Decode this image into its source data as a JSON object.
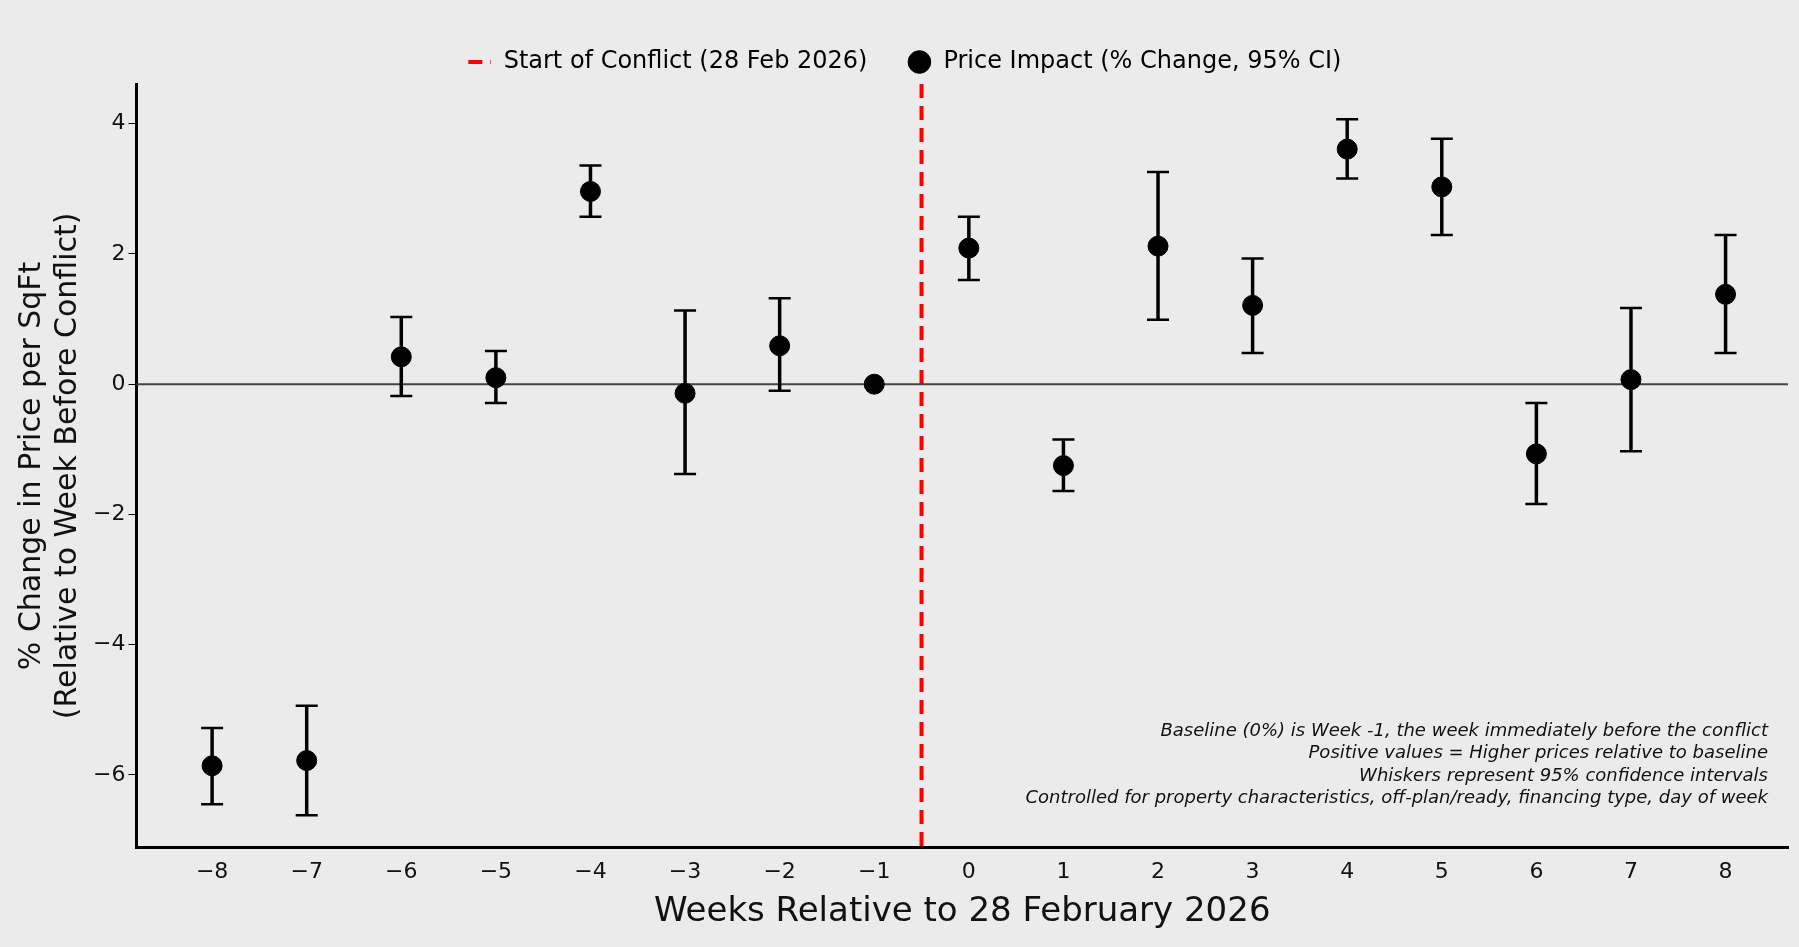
{
  "chart_data": {
    "type": "scatter",
    "xlabel": "Weeks Relative to 28 February 2026",
    "ylabel": "% Change in Price per SqFt\n(Relative to Week Before Conflict)",
    "x": [
      -8,
      -7,
      -6,
      -5,
      -4,
      -3,
      -2,
      -1,
      0,
      1,
      2,
      3,
      4,
      5,
      6,
      7,
      8
    ],
    "series": [
      {
        "name": "Price Impact (% Change, 95% CI)",
        "color": "#000000",
        "values": [
          -5.86,
          -5.78,
          0.42,
          0.1,
          2.96,
          -0.14,
          0.59,
          0,
          2.09,
          -1.25,
          2.12,
          1.21,
          3.61,
          3.03,
          -1.07,
          0.07,
          1.38
        ],
        "errors": [
          [
            -6.45,
            -5.28
          ],
          [
            -6.62,
            -4.94
          ],
          [
            -0.18,
            1.03
          ],
          [
            -0.29,
            0.51
          ],
          [
            2.57,
            3.36
          ],
          [
            -1.38,
            1.13
          ],
          [
            -0.1,
            1.32
          ],
          null,
          [
            1.6,
            2.57
          ],
          [
            -1.64,
            -0.85
          ],
          [
            0.99,
            3.26
          ],
          [
            0.48,
            1.93
          ],
          [
            3.16,
            4.07
          ],
          [
            2.29,
            3.77
          ],
          [
            -1.84,
            -0.29
          ],
          [
            -1.03,
            1.17
          ],
          [
            0.48,
            2.29
          ]
        ]
      }
    ],
    "xlim": [
      -8.8,
      8.66
    ],
    "xticks": [
      -8,
      -7,
      -6,
      -5,
      -4,
      -3,
      -2,
      -1,
      0,
      1,
      2,
      3,
      4,
      5,
      6,
      7,
      8
    ],
    "ylim": [
      -7.12,
      4.61
    ],
    "yticks": [
      -6,
      -4,
      -2,
      0,
      2,
      4
    ],
    "ref_lines": [
      {
        "axis": "x",
        "value": -0.5,
        "label": "Start of Conflict (28 Feb 2026)",
        "color": "#ff0000",
        "line_style": "dashed"
      },
      {
        "axis": "y",
        "value": 0,
        "color": "#444444",
        "line_style": "solid"
      }
    ],
    "annotations": [
      "Baseline (0%) is Week -1, the week immediately before the conflict",
      "Positive values = Higher prices relative to baseline",
      "Whiskers represent 95% confidence intervals",
      "Controlled for property characteristics, off-plan/ready, financing type, day of week"
    ],
    "grid": false,
    "legend": "top",
    "marker": "circle"
  }
}
